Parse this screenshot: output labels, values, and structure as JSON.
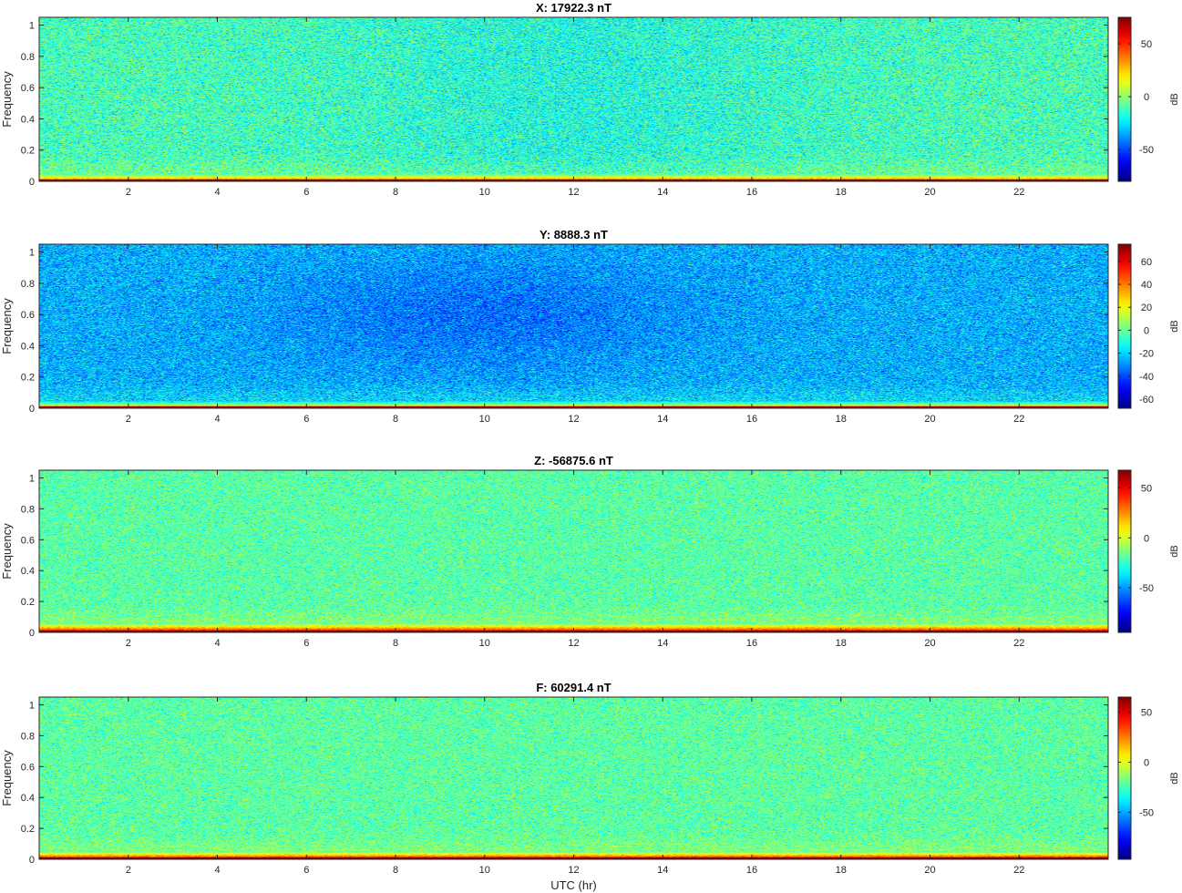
{
  "figure": {
    "xlabel": "UTC (hr)"
  },
  "chart_data": [
    {
      "type": "heatmap",
      "title": "X: 17922.3 nT",
      "xlabel": "",
      "ylabel": "Frequency",
      "xlim": [
        0,
        24
      ],
      "ylim": [
        0,
        1.05
      ],
      "xticks": [
        2,
        4,
        6,
        8,
        10,
        12,
        14,
        16,
        18,
        20,
        22
      ],
      "yticks": [
        0,
        0.2,
        0.4,
        0.6,
        0.8,
        1
      ],
      "yticklabels": [
        "0",
        "0.2",
        "0.4",
        "0.6",
        "0.8",
        "1"
      ],
      "colorbar": {
        "label": "dB",
        "range": [
          -80,
          75
        ],
        "ticks": [
          -50,
          0,
          50
        ],
        "colormap": "jet"
      },
      "field": {
        "background_db": -12,
        "band_db": 28,
        "line_db": 72,
        "band_top": 0.05,
        "noise": 13,
        "variation": "darker in hours 8-16"
      }
    },
    {
      "type": "heatmap",
      "title": "Y: 8888.3 nT",
      "xlabel": "",
      "ylabel": "Frequency",
      "xlim": [
        0,
        24
      ],
      "ylim": [
        0,
        1.05
      ],
      "xticks": [
        2,
        4,
        6,
        8,
        10,
        12,
        14,
        16,
        18,
        20,
        22
      ],
      "yticks": [
        0,
        0.2,
        0.4,
        0.6,
        0.8,
        1
      ],
      "yticklabels": [
        "0",
        "0.2",
        "0.4",
        "0.6",
        "0.8",
        "1"
      ],
      "colorbar": {
        "label": "dB",
        "range": [
          -68,
          75
        ],
        "ticks": [
          -60,
          -40,
          -20,
          0,
          20,
          40,
          60
        ],
        "colormap": "jet"
      },
      "field": {
        "background_db": -25,
        "band_db": 20,
        "line_db": 70,
        "band_top": 0.05,
        "noise": 12,
        "variation": "darkest in hours 6-14 at frequency 0.3-0.9"
      }
    },
    {
      "type": "heatmap",
      "title": "Z: -56875.6 nT",
      "xlabel": "",
      "ylabel": "Frequency",
      "xlim": [
        0,
        24
      ],
      "ylim": [
        0,
        1.05
      ],
      "xticks": [
        2,
        4,
        6,
        8,
        10,
        12,
        14,
        16,
        18,
        20,
        22
      ],
      "yticks": [
        0,
        0.2,
        0.4,
        0.6,
        0.8,
        1
      ],
      "yticklabels": [
        "0",
        "0.2",
        "0.4",
        "0.6",
        "0.8",
        "1"
      ],
      "colorbar": {
        "label": "dB",
        "range": [
          -95,
          68
        ],
        "ticks": [
          -50,
          0,
          50
        ],
        "colormap": "jet"
      },
      "field": {
        "background_db": -20,
        "band_db": 40,
        "line_db": 66,
        "band_top": 0.06,
        "noise": 11,
        "variation": "uniform"
      }
    },
    {
      "type": "heatmap",
      "title": "F: 60291.4 nT",
      "xlabel": "UTC (hr)",
      "ylabel": "Frequency",
      "xlim": [
        0,
        24
      ],
      "ylim": [
        0,
        1.05
      ],
      "xticks": [
        2,
        4,
        6,
        8,
        10,
        12,
        14,
        16,
        18,
        20,
        22
      ],
      "yticks": [
        0,
        0.2,
        0.4,
        0.6,
        0.8,
        1
      ],
      "yticklabels": [
        "0",
        "0.2",
        "0.4",
        "0.6",
        "0.8",
        "1"
      ],
      "colorbar": {
        "label": "dB",
        "range": [
          -97,
          65
        ],
        "ticks": [
          -50,
          0,
          50
        ],
        "colormap": "jet"
      },
      "field": {
        "background_db": -22,
        "band_db": 36,
        "line_db": 64,
        "band_top": 0.05,
        "noise": 11,
        "variation": "uniform"
      }
    }
  ]
}
